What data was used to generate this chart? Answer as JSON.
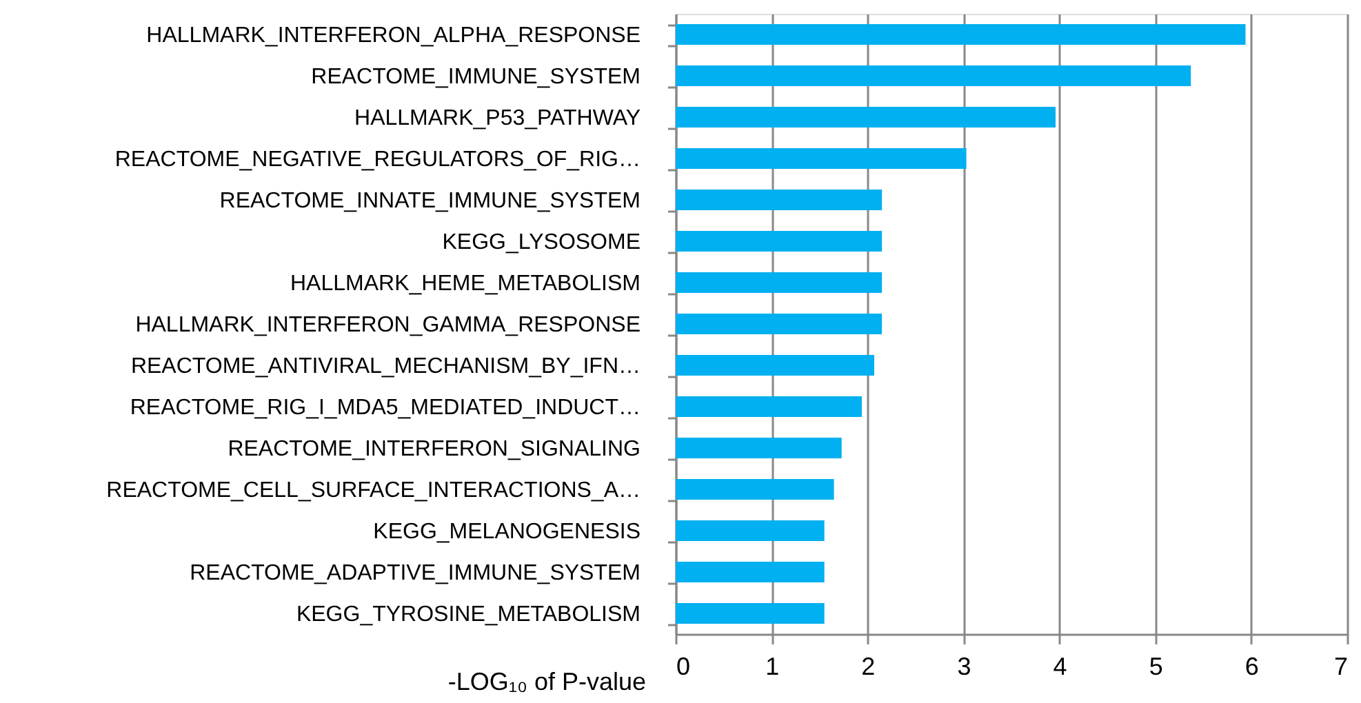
{
  "chart_data": {
    "type": "bar",
    "orientation": "horizontal",
    "categories": [
      "HALLMARK_INTERFERON_ALPHA_RESPONSE",
      "REACTOME_IMMUNE_SYSTEM",
      "HALLMARK_P53_PATHWAY",
      "REACTOME_NEGATIVE_REGULATORS_OF_RIG…",
      "REACTOME_INNATE_IMMUNE_SYSTEM",
      "KEGG_LYSOSOME",
      "HALLMARK_HEME_METABOLISM",
      "HALLMARK_INTERFERON_GAMMA_RESPONSE",
      "REACTOME_ANTIVIRAL_MECHANISM_BY_IFN…",
      "REACTOME_RIG_I_MDA5_MEDIATED_INDUCT…",
      "REACTOME_INTERFERON_SIGNALING",
      "REACTOME_CELL_SURFACE_INTERACTIONS_A…",
      "KEGG_MELANOGENESIS",
      "REACTOME_ADAPTIVE_IMMUNE_SYSTEM",
      "KEGG_TYROSINE_METABOLISM"
    ],
    "values": [
      5.94,
      5.37,
      3.96,
      3.03,
      2.15,
      2.15,
      2.15,
      2.15,
      2.07,
      1.94,
      1.73,
      1.65,
      1.55,
      1.55,
      1.55
    ],
    "color": "#00b0f0",
    "xlabel": "-LOG₁₀ of P-value",
    "xlim": [
      0,
      7
    ],
    "xticks": [
      0,
      1,
      2,
      3,
      4,
      5,
      6,
      7
    ],
    "grid": "x"
  }
}
